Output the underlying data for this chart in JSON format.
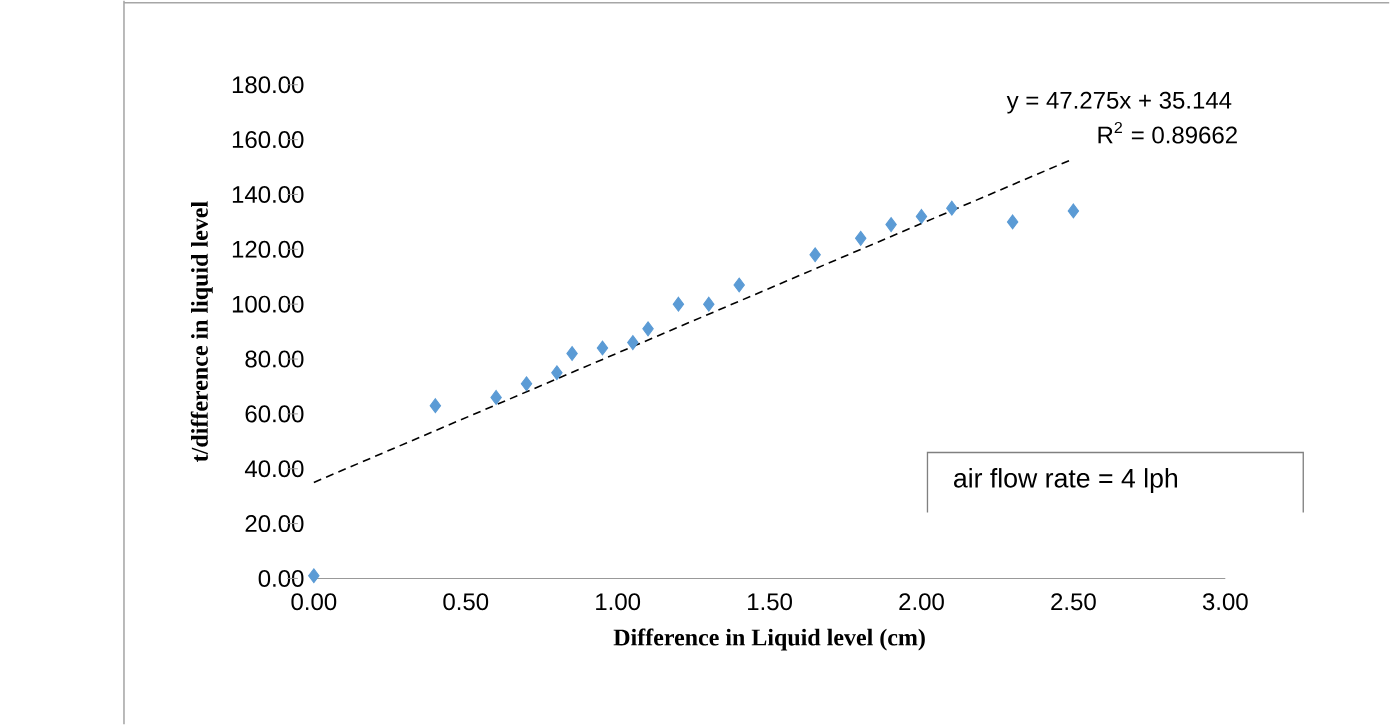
{
  "chart_data": {
    "type": "scatter",
    "xlabel": "Difference in Liquid level  (cm)",
    "ylabel": "t/difference in liquid level",
    "xlim": [
      0,
      3
    ],
    "ylim": [
      0,
      180
    ],
    "xticks": [
      {
        "value": 0,
        "label": "0.00"
      },
      {
        "value": 0.5,
        "label": "0.50"
      },
      {
        "value": 1,
        "label": "1.00"
      },
      {
        "value": 1.5,
        "label": "1.50"
      },
      {
        "value": 2,
        "label": "2.00"
      },
      {
        "value": 2.5,
        "label": "2.50"
      },
      {
        "value": 3,
        "label": "3.00"
      }
    ],
    "yticks": [
      {
        "value": 0,
        "label": "0.00"
      },
      {
        "value": 20,
        "label": "20.00"
      },
      {
        "value": 40,
        "label": "40.00"
      },
      {
        "value": 60,
        "label": "60.00"
      },
      {
        "value": 80,
        "label": "80.00"
      },
      {
        "value": 100,
        "label": "100.00"
      },
      {
        "value": 120,
        "label": "120.00"
      },
      {
        "value": 140,
        "label": "140.00"
      },
      {
        "value": 160,
        "label": "160.00"
      },
      {
        "value": 180,
        "label": "180.00"
      }
    ],
    "marker": "diamond",
    "grid": false,
    "series": [
      {
        "color": "#5b9bd5",
        "x": [
          0,
          0.4,
          0.6,
          0.7,
          0.8,
          0.85,
          0.95,
          1.05,
          1.1,
          1.2,
          1.3,
          1.4,
          1.65,
          1.8,
          1.9,
          2.0,
          2.1,
          2.3,
          2.5
        ],
        "values": [
          1,
          63,
          66,
          71,
          75,
          82,
          84,
          86,
          91,
          100,
          100,
          107,
          118,
          124,
          129,
          132,
          135,
          130,
          134
        ]
      },
      {
        "type": "line",
        "color": "#000000",
        "line_style": "dashed",
        "marker": "none",
        "x": [
          0,
          2.5
        ],
        "values": [
          35,
          153
        ]
      }
    ],
    "annotations": [
      "y = 47.275x + 35.144",
      "R$^{2}$ = 0.89662",
      "air flow rate = 4 lph"
    ]
  }
}
